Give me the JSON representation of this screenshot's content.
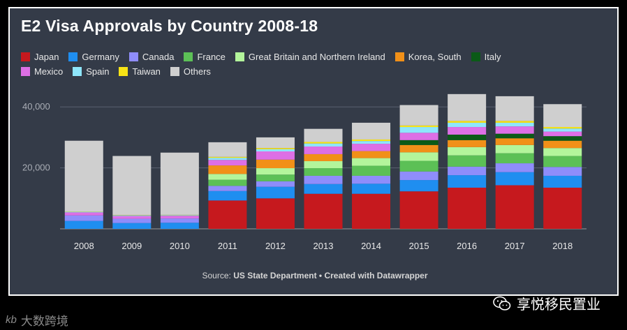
{
  "chart_data": {
    "type": "bar",
    "stacked": true,
    "title": "E2 Visa Approvals by Country 2008-18",
    "xlabel": "",
    "ylabel": "",
    "ylim": [
      0,
      45000
    ],
    "yticks": [
      20000,
      40000
    ],
    "ytick_labels": [
      "20,000",
      "40,000"
    ],
    "categories": [
      "2008",
      "2009",
      "2010",
      "2011",
      "2012",
      "2013",
      "2014",
      "2015",
      "2016",
      "2017",
      "2018"
    ],
    "series": [
      {
        "name": "Japan",
        "color": "#c6191e",
        "values": [
          0,
          0,
          0,
          9300,
          10000,
          11500,
          11500,
          12300,
          13500,
          14300,
          13500
        ]
      },
      {
        "name": "Germany",
        "color": "#1f8ef0",
        "values": [
          2600,
          1900,
          2000,
          3100,
          3800,
          3200,
          3300,
          3700,
          4100,
          4300,
          3900
        ]
      },
      {
        "name": "Canada",
        "color": "#8f8dfb",
        "values": [
          1800,
          1400,
          1400,
          1700,
          1800,
          2700,
          2600,
          2800,
          2800,
          2900,
          2900
        ]
      },
      {
        "name": "France",
        "color": "#5cc056",
        "values": [
          0,
          0,
          0,
          2000,
          2200,
          2500,
          3300,
          3500,
          3700,
          3300,
          3600
        ]
      },
      {
        "name": "Great Britain and Northern Ireland",
        "color": "#b3f59b",
        "values": [
          0,
          0,
          0,
          1900,
          2100,
          2300,
          2500,
          2800,
          2700,
          2700,
          2600
        ]
      },
      {
        "name": "Korea, South",
        "color": "#f19018",
        "values": [
          0,
          0,
          0,
          2800,
          2800,
          2300,
          2300,
          2400,
          2300,
          2200,
          2400
        ]
      },
      {
        "name": "Italy",
        "color": "#0b5a17",
        "values": [
          0,
          0,
          0,
          0,
          0,
          0,
          0,
          1600,
          1800,
          1500,
          1500
        ]
      },
      {
        "name": "Mexico",
        "color": "#dd6fe5",
        "values": [
          1000,
          900,
          900,
          1800,
          2700,
          2500,
          2400,
          2400,
          2500,
          2400,
          1500
        ]
      },
      {
        "name": "Spain",
        "color": "#8ee6fb",
        "values": [
          200,
          200,
          200,
          700,
          700,
          1000,
          900,
          1900,
          1400,
          1200,
          1000
        ]
      },
      {
        "name": "Taiwan",
        "color": "#f7e315",
        "values": [
          100,
          100,
          100,
          300,
          400,
          500,
          500,
          500,
          600,
          600,
          500
        ]
      },
      {
        "name": "Others",
        "color": "#cfcfcf",
        "values": [
          23200,
          19400,
          20400,
          4800,
          3500,
          4300,
          5500,
          6700,
          8800,
          8100,
          7500
        ]
      }
    ]
  },
  "source": {
    "prefix": "Source: ",
    "source_name": "US State Department",
    "separator": " • ",
    "credit": "Created with Datawrapper"
  },
  "watermarks": {
    "left_text": "大数跨境",
    "left_mark": "kb",
    "right_text": "享悦移民置业"
  },
  "colors": {
    "background": "#343b48",
    "gridline": "#5a6170",
    "axis": "#9a9a9a",
    "text": "#e8e8e8"
  }
}
